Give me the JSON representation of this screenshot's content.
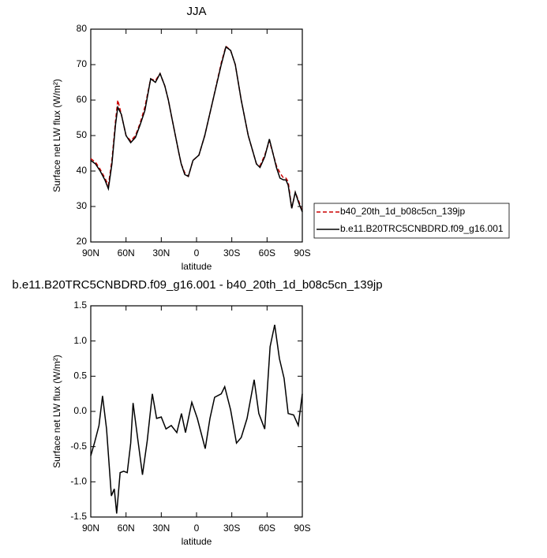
{
  "chart_data": [
    {
      "type": "line",
      "title": "JJA",
      "xlabel": "latitude",
      "ylabel": "Surface net LW flux (W/m²)",
      "x": [
        90,
        86,
        82,
        78,
        75,
        72,
        69,
        67,
        64,
        60,
        56,
        52,
        48,
        44,
        39,
        35,
        31,
        27,
        24,
        21,
        18,
        15,
        13,
        10,
        7,
        3,
        -2,
        -7,
        -14,
        -21,
        -25,
        -29,
        -33,
        -38,
        -44,
        -51,
        -54,
        -58,
        -62,
        -65,
        -68,
        -71,
        -74,
        -76,
        -78,
        -81,
        -84,
        -87,
        -90
      ],
      "series": [
        {
          "name": "b40_20th_1d_b08c5cn_139jp",
          "color": "#cc0000",
          "dashed": true,
          "values": [
            43.5,
            42.5,
            40.5,
            38,
            36,
            43,
            54,
            60,
            56,
            50,
            48.5,
            50,
            53.5,
            58,
            66,
            65.5,
            67.5,
            64,
            60,
            55,
            50,
            45,
            42,
            39.5,
            38.5,
            43,
            44.5,
            50,
            60,
            70.5,
            75.2,
            74,
            70,
            60,
            50,
            42,
            41.5,
            44.5,
            48.5,
            45,
            41.5,
            39.5,
            38,
            38,
            37,
            29.5,
            34,
            31.5,
            28.5
          ]
        },
        {
          "name": "b.e11.B20TRC5CNBDRD.f09_g16.001",
          "color": "#000000",
          "dashed": false,
          "values": [
            43,
            42,
            40,
            37.5,
            35,
            42,
            53,
            58,
            56,
            50,
            48,
            49.5,
            53,
            57,
            66,
            65,
            67.5,
            64,
            60,
            55,
            50,
            45,
            42,
            39,
            38.5,
            43,
            44.5,
            50,
            60,
            70,
            75,
            74,
            70,
            60,
            50,
            42,
            41,
            44,
            49,
            45,
            41,
            38,
            37.5,
            37.5,
            36,
            29.5,
            34,
            31,
            28.5
          ]
        }
      ],
      "xlim": [
        90,
        -90
      ],
      "xticks": [
        {
          "value": 90,
          "label": "90N"
        },
        {
          "value": 60,
          "label": "60N"
        },
        {
          "value": 30,
          "label": "30N"
        },
        0,
        {
          "value": -30,
          "label": "30S"
        },
        {
          "value": -60,
          "label": "60S"
        },
        {
          "value": -90,
          "label": "90S"
        }
      ],
      "ylim": [
        20,
        80
      ],
      "yticks": [
        20,
        30,
        40,
        50,
        60,
        70,
        80
      ],
      "grid": false,
      "legend": "outside right"
    },
    {
      "type": "line",
      "title": "b.e11.B20TRC5CNBDRD.f09_g16.001 - b40_20th_1d_b08c5cn_139jp",
      "xlabel": "latitude",
      "ylabel": "Surface net LW flux (W/m²)",
      "x": [
        90,
        86.6,
        83,
        80,
        76.6,
        72.5,
        70,
        68,
        65,
        62,
        59,
        56,
        54,
        50,
        46,
        42,
        37.6,
        34,
        30,
        26,
        21.5,
        16.8,
        12.8,
        9.4,
        4,
        -0.7,
        -7.4,
        -11.4,
        -15.4,
        -21,
        -24,
        -29,
        -34,
        -38,
        -43,
        -49,
        -53,
        -58,
        -62.6,
        -66.5,
        -70.5,
        -74.5,
        -78,
        -82.6,
        -86.6,
        -90
      ],
      "series": [
        {
          "color": "#000000",
          "dashed": false,
          "values": [
            -0.63,
            -0.43,
            -0.2,
            0.22,
            -0.25,
            -1.2,
            -1.1,
            -1.45,
            -0.87,
            -0.85,
            -0.87,
            -0.45,
            0.12,
            -0.4,
            -0.9,
            -0.42,
            0.25,
            -0.1,
            -0.08,
            -0.25,
            -0.2,
            -0.3,
            -0.03,
            -0.3,
            0.13,
            -0.1,
            -0.53,
            -0.1,
            0.2,
            0.25,
            0.35,
            0.02,
            -0.45,
            -0.37,
            -0.1,
            0.45,
            -0.03,
            -0.25,
            0.92,
            1.23,
            0.75,
            0.47,
            -0.03,
            -0.05,
            -0.2,
            0.25
          ]
        }
      ],
      "xlim": [
        90,
        -90
      ],
      "xticks": [
        {
          "value": 90,
          "label": "90N"
        },
        {
          "value": 60,
          "label": "60N"
        },
        {
          "value": 30,
          "label": "30N"
        },
        0,
        {
          "value": -30,
          "label": "30S"
        },
        {
          "value": -60,
          "label": "60S"
        },
        {
          "value": -90,
          "label": "90S"
        }
      ],
      "ylim": [
        -1.5,
        1.5
      ],
      "yticks": [
        -1.5,
        {
          "value": -1,
          "label": "-1.0"
        },
        -0.5,
        {
          "value": 0,
          "label": "0.0"
        },
        0.5,
        {
          "value": 1,
          "label": "1.0"
        },
        1.5
      ],
      "grid": false
    }
  ]
}
